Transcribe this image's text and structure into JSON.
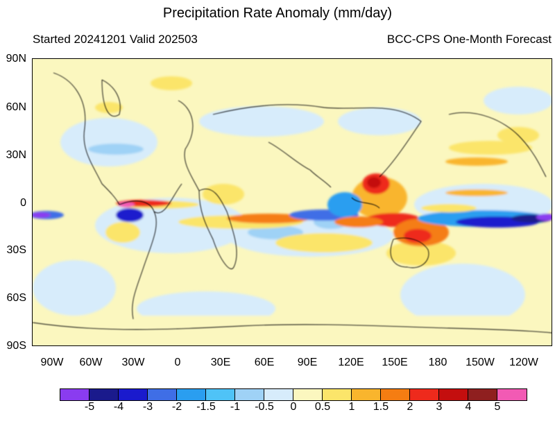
{
  "header": {
    "title": "Precipitation Rate Anomaly (mm/day)",
    "started_valid": "Started 20241201  Valid 202503",
    "model": "BCC-CPS One-Month Forecast"
  },
  "map": {
    "lat_labels": [
      "90N",
      "60N",
      "30N",
      "0",
      "30S",
      "60S",
      "90S"
    ],
    "lon_labels": [
      "90W",
      "60W",
      "30W",
      "0",
      "30E",
      "60E",
      "90E",
      "120E",
      "150E",
      "180",
      "150W",
      "120W"
    ]
  },
  "colorbar": {
    "labels": [
      "-5",
      "-4",
      "-3",
      "-2",
      "-1.5",
      "-1",
      "-0.5",
      "0",
      "0.5",
      "1",
      "1.5",
      "2",
      "3",
      "4",
      "5"
    ],
    "colors": [
      "#8a3cf0",
      "#1a1a8c",
      "#1a1acd",
      "#3f6ee6",
      "#2a9ef0",
      "#4fc3f7",
      "#9fd2f6",
      "#d7ecfb",
      "#fbf7bf",
      "#fbe56a",
      "#f9b52d",
      "#f57d12",
      "#ee2a1c",
      "#c40e0e",
      "#8f1f1f",
      "#f25ab4"
    ]
  }
}
